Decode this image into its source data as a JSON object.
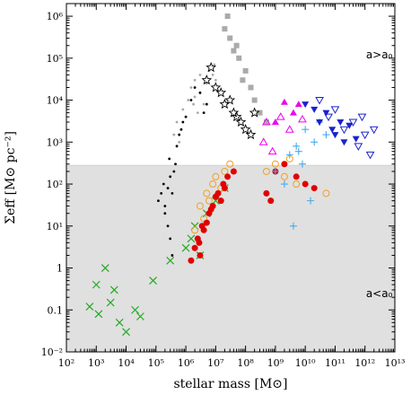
{
  "chart_data": {
    "type": "scatter",
    "xlabel": "stellar mass [M⊙]",
    "ylabel": "Σeff [M⊙ pc⁻²]",
    "xscale": "log",
    "yscale": "log",
    "xlim": [
      100,
      10000000000000
    ],
    "ylim": [
      0.01,
      2000000
    ],
    "x_tick_labels": [
      "10²",
      "10³",
      "10⁴",
      "10⁵",
      "10⁶",
      "10⁷",
      "10⁸",
      "10⁹",
      "10¹⁰",
      "10¹¹",
      "10¹²",
      "10¹³"
    ],
    "x_tick_values": [
      100,
      1000,
      10000,
      100000,
      1000000,
      10000000,
      100000000,
      1000000000,
      10000000000,
      100000000000,
      1000000000000,
      10000000000000
    ],
    "y_tick_labels": [
      "10⁻²",
      "0.1",
      "1",
      "10¹",
      "10²",
      "10³",
      "10⁴",
      "10⁵",
      "10⁶"
    ],
    "y_tick_values": [
      0.01,
      0.1,
      1,
      10,
      100,
      1000,
      10000,
      100000,
      1000000
    ],
    "threshold_y": 280,
    "shaded_region": "below threshold",
    "annotations": [
      {
        "text": "a>a₀",
        "x": 3000000000000,
        "y": 100000
      },
      {
        "text": "a<a₀",
        "x": 3000000000000,
        "y": 0.2
      }
    ],
    "colors": {
      "shade": "#e0e0e0",
      "gray_dots": "#aaaaaa",
      "gray_squares": "#aaaaaa",
      "black": "#000000",
      "red": "#e00000",
      "orange": "#f0a020",
      "green": "#22aa22",
      "cyan": "#44aaee",
      "blue": "#1a22cc",
      "magenta": "#ee00ee"
    },
    "series": [
      {
        "marker": "dot",
        "color": "gray_dots",
        "points": [
          [
            500000,
            3000
          ],
          [
            800000,
            6000
          ],
          [
            1200000,
            10000
          ],
          [
            1500000,
            20000
          ],
          [
            2000000,
            30000
          ],
          [
            3000000,
            15000
          ],
          [
            4000000,
            8000
          ],
          [
            1000000,
            4000
          ],
          [
            700000,
            2000
          ],
          [
            2500000,
            5000
          ],
          [
            5000000,
            25000
          ],
          [
            6000000,
            50000
          ],
          [
            8000000,
            40000
          ],
          [
            10000000,
            30000
          ],
          [
            3000000,
            40000
          ],
          [
            2000000,
            12000
          ],
          [
            400000,
            1500
          ],
          [
            600000,
            1000
          ],
          [
            1800000,
            8000
          ],
          [
            9000000,
            70000
          ]
        ]
      },
      {
        "marker": "dot",
        "color": "black",
        "points": [
          [
            200000,
            30
          ],
          [
            250000,
            10
          ],
          [
            300000,
            5
          ],
          [
            350000,
            2
          ],
          [
            150000,
            60
          ],
          [
            180000,
            100
          ],
          [
            400000,
            200
          ],
          [
            500000,
            800
          ],
          [
            700000,
            2000
          ],
          [
            1000000,
            4000
          ],
          [
            1500000,
            10000
          ],
          [
            2000000,
            20000
          ],
          [
            3000000,
            15000
          ],
          [
            5000000,
            8000
          ],
          [
            300000,
            150
          ],
          [
            250000,
            80
          ],
          [
            120000,
            40
          ],
          [
            450000,
            300
          ],
          [
            600000,
            1500
          ],
          [
            800000,
            3000
          ],
          [
            4000000,
            5000
          ],
          [
            200000,
            20
          ],
          [
            350000,
            60
          ],
          [
            280000,
            400
          ]
        ]
      },
      {
        "marker": "square",
        "color": "gray_squares",
        "points": [
          [
            25000000,
            1000000
          ],
          [
            30000000,
            300000
          ],
          [
            50000000,
            200000
          ],
          [
            60000000,
            100000
          ],
          [
            80000000,
            30000
          ],
          [
            100000000,
            50000
          ],
          [
            150000000,
            20000
          ],
          [
            200000000,
            10000
          ],
          [
            300000000,
            5000
          ],
          [
            500000000,
            3000
          ],
          [
            40000000,
            150000
          ],
          [
            20000000,
            500000
          ]
        ]
      },
      {
        "marker": "star",
        "color": "black",
        "points": [
          [
            5000000,
            30000
          ],
          [
            7000000,
            60000
          ],
          [
            10000000,
            20000
          ],
          [
            15000000,
            15000
          ],
          [
            20000000,
            8000
          ],
          [
            30000000,
            10000
          ],
          [
            40000000,
            5000
          ],
          [
            50000000,
            4000
          ],
          [
            70000000,
            3000
          ],
          [
            100000000,
            2000
          ],
          [
            150000000,
            1500
          ],
          [
            200000000,
            5000
          ]
        ]
      },
      {
        "marker": "cross",
        "color": "green",
        "points": [
          [
            600,
            0.12
          ],
          [
            1000,
            0.4
          ],
          [
            1200,
            0.08
          ],
          [
            2000,
            1
          ],
          [
            3000,
            0.15
          ],
          [
            4000,
            0.3
          ],
          [
            6000,
            0.05
          ],
          [
            10000,
            0.03
          ],
          [
            20000,
            0.1
          ],
          [
            30000,
            0.07
          ],
          [
            80000,
            0.5
          ],
          [
            300000,
            1.5
          ],
          [
            1000000,
            3
          ],
          [
            1500000,
            5
          ],
          [
            2000000,
            10
          ],
          [
            5000000,
            20
          ],
          [
            10000000,
            40
          ],
          [
            20000000,
            80
          ],
          [
            3000000,
            2
          ]
        ]
      },
      {
        "marker": "circle-open",
        "color": "orange",
        "points": [
          [
            3000000,
            30
          ],
          [
            5000000,
            60
          ],
          [
            8000000,
            100
          ],
          [
            10000000,
            150
          ],
          [
            15000000,
            80
          ],
          [
            20000000,
            200
          ],
          [
            4000000,
            15
          ],
          [
            2000000,
            8
          ],
          [
            6000000,
            40
          ],
          [
            30000000,
            300
          ],
          [
            500000000,
            200
          ],
          [
            1000000000,
            300
          ],
          [
            2000000000,
            150
          ],
          [
            3000000000,
            400
          ],
          [
            5000000000,
            100
          ],
          [
            50000000000,
            60
          ]
        ]
      },
      {
        "marker": "circle-filled",
        "color": "red",
        "points": [
          [
            2000000,
            3
          ],
          [
            2500000,
            5
          ],
          [
            3000000,
            2
          ],
          [
            4000000,
            8
          ],
          [
            5000000,
            12
          ],
          [
            6000000,
            20
          ],
          [
            8000000,
            30
          ],
          [
            10000000,
            50
          ],
          [
            15000000,
            40
          ],
          [
            20000000,
            80
          ],
          [
            3500000,
            10
          ],
          [
            7000000,
            25
          ],
          [
            12000000,
            60
          ],
          [
            18000000,
            100
          ],
          [
            25000000,
            150
          ],
          [
            40000000,
            200
          ],
          [
            1500000,
            1.5
          ],
          [
            2800000,
            4
          ],
          [
            500000000,
            60
          ],
          [
            700000000,
            40
          ],
          [
            1000000000,
            200
          ],
          [
            2000000000,
            300
          ],
          [
            5000000000,
            150
          ],
          [
            10000000000,
            100
          ],
          [
            20000000000,
            80
          ]
        ]
      },
      {
        "marker": "plus",
        "color": "cyan",
        "points": [
          [
            1000000000,
            200
          ],
          [
            3000000000,
            500
          ],
          [
            5000000000,
            800
          ],
          [
            8000000000,
            300
          ],
          [
            10000000000,
            2000
          ],
          [
            20000000000,
            1000
          ],
          [
            30000000000,
            3000
          ],
          [
            50000000000,
            1500
          ],
          [
            2000000000,
            100
          ],
          [
            15000000000,
            40
          ],
          [
            4000000000,
            10
          ],
          [
            6000000000,
            600
          ]
        ]
      },
      {
        "marker": "triangle-down-filled",
        "color": "blue",
        "points": [
          [
            10000000000,
            8000
          ],
          [
            20000000000,
            6000
          ],
          [
            30000000000,
            3000
          ],
          [
            50000000000,
            5000
          ],
          [
            80000000000,
            2000
          ],
          [
            100000000000,
            1500
          ],
          [
            150000000000,
            3000
          ],
          [
            200000000000,
            1000
          ],
          [
            300000000000,
            2500
          ],
          [
            500000000000,
            1200
          ]
        ]
      },
      {
        "marker": "triangle-down-open",
        "color": "blue",
        "points": [
          [
            30000000000,
            10000
          ],
          [
            60000000000,
            4000
          ],
          [
            100000000000,
            6000
          ],
          [
            200000000000,
            2000
          ],
          [
            400000000000,
            3000
          ],
          [
            600000000000,
            800
          ],
          [
            1000000000000,
            1500
          ],
          [
            1500000000000,
            500
          ],
          [
            2000000000000,
            2000
          ],
          [
            800000000000,
            4000
          ]
        ]
      },
      {
        "marker": "triangle-up-filled",
        "color": "magenta",
        "points": [
          [
            2000000000,
            9000
          ],
          [
            4000000000,
            5000
          ],
          [
            6000000000,
            8000
          ],
          [
            1000000000,
            3000
          ]
        ]
      },
      {
        "marker": "triangle-up-open",
        "color": "magenta",
        "points": [
          [
            400000000,
            1000
          ],
          [
            500000000,
            3000
          ],
          [
            800000000,
            600
          ],
          [
            1500000000,
            4000
          ],
          [
            3000000000,
            2000
          ],
          [
            8000000000,
            3500
          ]
        ]
      }
    ]
  }
}
